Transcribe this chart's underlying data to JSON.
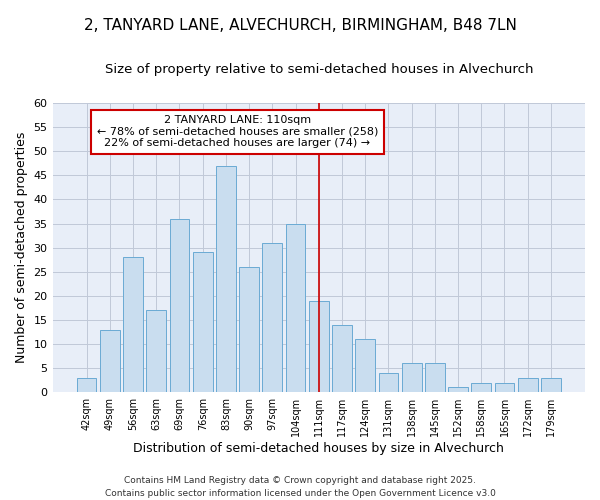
{
  "title1": "2, TANYARD LANE, ALVECHURCH, BIRMINGHAM, B48 7LN",
  "title2": "Size of property relative to semi-detached houses in Alvechurch",
  "xlabel": "Distribution of semi-detached houses by size in Alvechurch",
  "ylabel": "Number of semi-detached properties",
  "categories": [
    "42sqm",
    "49sqm",
    "56sqm",
    "63sqm",
    "69sqm",
    "76sqm",
    "83sqm",
    "90sqm",
    "97sqm",
    "104sqm",
    "111sqm",
    "117sqm",
    "124sqm",
    "131sqm",
    "138sqm",
    "145sqm",
    "152sqm",
    "158sqm",
    "165sqm",
    "172sqm",
    "179sqm"
  ],
  "values": [
    3,
    13,
    28,
    17,
    36,
    29,
    47,
    26,
    31,
    35,
    19,
    14,
    11,
    4,
    6,
    6,
    1,
    2,
    2,
    3,
    3
  ],
  "bar_color": "#c9ddef",
  "bar_edge_color": "#6aaad4",
  "vline_x_index": 10,
  "vline_color": "#cc0000",
  "annotation_line1": "2 TANYARD LANE: 110sqm",
  "annotation_line2": "← 78% of semi-detached houses are smaller (258)",
  "annotation_line3": "22% of semi-detached houses are larger (74) →",
  "annotation_box_color": "#ffffff",
  "annotation_box_edge_color": "#cc0000",
  "ylim": [
    0,
    60
  ],
  "yticks": [
    0,
    5,
    10,
    15,
    20,
    25,
    30,
    35,
    40,
    45,
    50,
    55,
    60
  ],
  "fig_bg_color": "#ffffff",
  "plot_bg_color": "#e8eef8",
  "grid_color": "#c0c8d8",
  "footer": "Contains HM Land Registry data © Crown copyright and database right 2025.\nContains public sector information licensed under the Open Government Licence v3.0",
  "title1_fontsize": 11,
  "title2_fontsize": 9.5,
  "annotation_fontsize": 8,
  "footer_fontsize": 6.5,
  "xlabel_fontsize": 9,
  "ylabel_fontsize": 9
}
